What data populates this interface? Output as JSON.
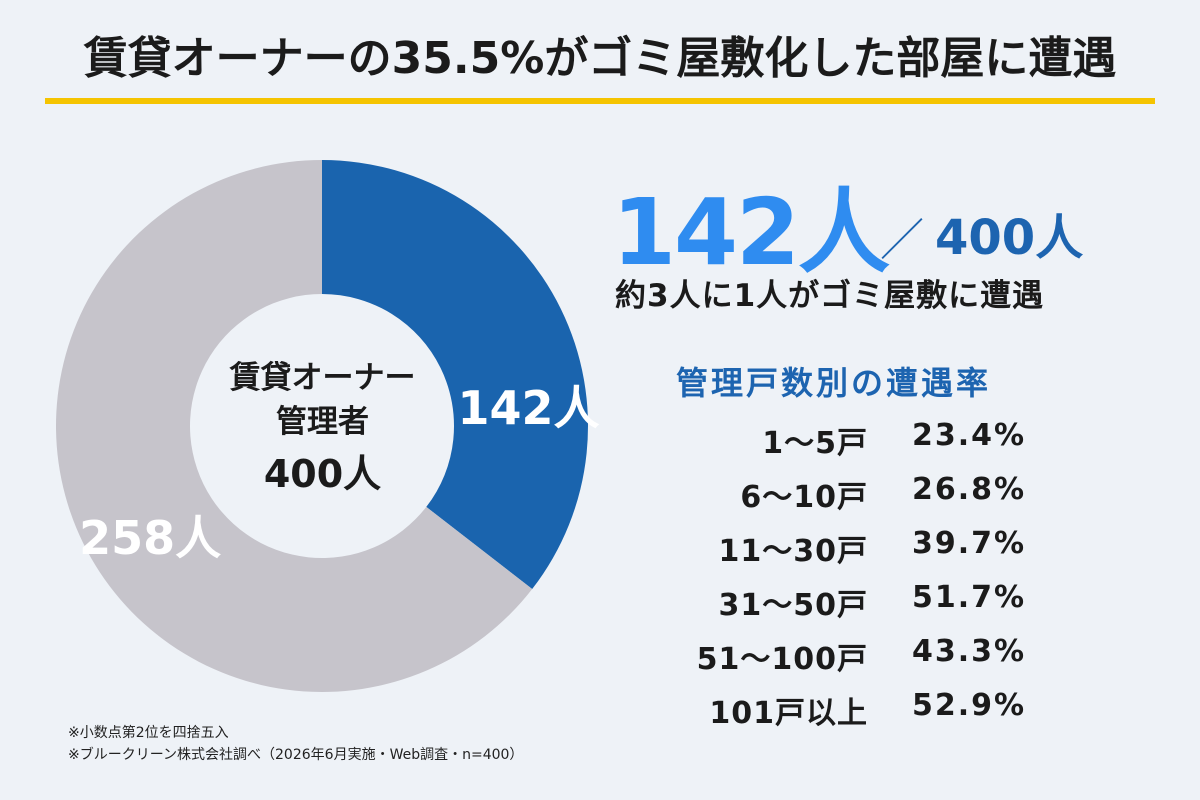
{
  "title": "賃貸オーナーの35.5%がゴミ屋敷化した部屋に遭遇",
  "colors": {
    "accent_blue": "#1a64ae",
    "light_blue": "#2f8cf0",
    "gray": "#c6c4cb",
    "title_underline": "#f5c400",
    "background": "#eef2f7"
  },
  "chart_data": {
    "type": "pie",
    "variant": "donut",
    "categories": [
      "142人",
      "258人"
    ],
    "values": [
      142,
      258
    ],
    "colors": [
      "#1a64ae",
      "#c6c4cb"
    ],
    "center_label": [
      "賃貸オーナー",
      "管理者",
      "400人"
    ]
  },
  "highlight": {
    "count": "142人",
    "separator": "／",
    "total": "400人",
    "summary": "約3人に1人がゴミ屋敷に遭遇"
  },
  "rate_table": {
    "title": "管理戸数別の遭遇率",
    "rows": [
      {
        "label": "1〜5戸",
        "value": "23.4%"
      },
      {
        "label": "6〜10戸",
        "value": "26.8%"
      },
      {
        "label": "11〜30戸",
        "value": "39.7%"
      },
      {
        "label": "31〜50戸",
        "value": "51.7%"
      },
      {
        "label": "51〜100戸",
        "value": "43.3%"
      },
      {
        "label": "101戸以上",
        "value": "52.9%"
      }
    ]
  },
  "notes": [
    "※小数点第2位を四捨五入",
    "※ブルークリーン株式会社調べ（2026年6月実施・Web調査・n=400）"
  ]
}
